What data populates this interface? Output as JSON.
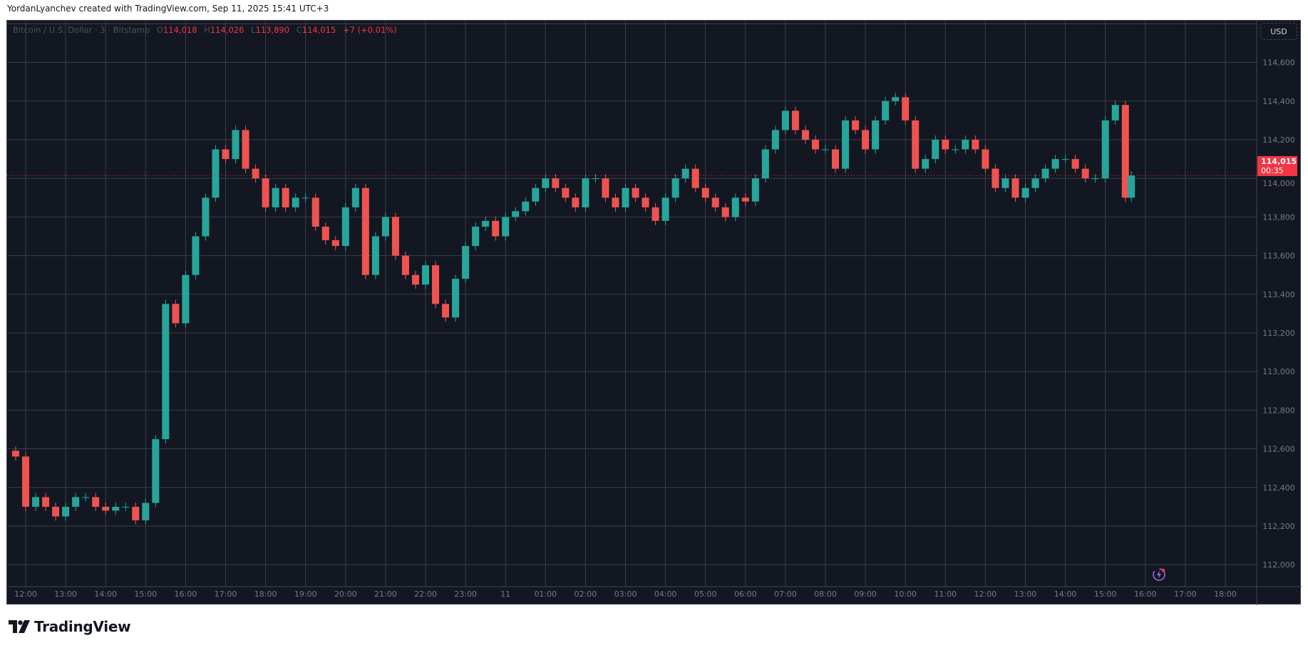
{
  "header": {
    "credit": "YordanLyanchev created with TradingView.com, Sep 11, 2025 15:41 UTC+3"
  },
  "legend": {
    "symbol": "Bitcoin / U.S. Dollar · 3 · Bitstamp",
    "o_label": "O",
    "o_value": "114,018",
    "h_label": "H",
    "h_value": "114,026",
    "l_label": "L",
    "l_value": "113,890",
    "c_label": "C",
    "c_value": "114,015",
    "change": "+7 (+0.01%)"
  },
  "price_axis": {
    "currency_button": "USD",
    "ticks": [
      "114,600",
      "114,400",
      "114,200",
      "114,000",
      "113,800",
      "113,600",
      "113,400",
      "113,200",
      "113,000",
      "112,800",
      "112,600",
      "112,400",
      "112,200",
      "112,000"
    ],
    "current_price": "114,015",
    "countdown": "00:35"
  },
  "time_axis": {
    "ticks": [
      "12:00",
      "13:00",
      "14:00",
      "15:00",
      "16:00",
      "17:00",
      "18:00",
      "19:00",
      "20:00",
      "21:00",
      "22:00",
      "23:00",
      "11",
      "01:00",
      "02:00",
      "03:00",
      "04:00",
      "05:00",
      "06:00",
      "07:00",
      "08:00",
      "09:00",
      "10:00",
      "11:00",
      "12:00",
      "13:00",
      "14:00",
      "15:00",
      "16:00",
      "17:00",
      "18:00"
    ]
  },
  "footer": {
    "logo_text": "TradingView"
  },
  "colors": {
    "up": "#26a69a",
    "down": "#ef5350",
    "background": "#131722",
    "grid": "#3b3f4b",
    "last_price": "#f23645"
  },
  "chart_data": {
    "type": "candlestick",
    "ylim": [
      112000,
      114800
    ],
    "grid": true,
    "closes": [
      [
        "11:45",
        112560
      ],
      [
        "12:00",
        112300
      ],
      [
        "12:15",
        112350
      ],
      [
        "12:30",
        112300
      ],
      [
        "12:45",
        112250
      ],
      [
        "13:00",
        112300
      ],
      [
        "13:15",
        112350
      ],
      [
        "13:30",
        112350
      ],
      [
        "13:45",
        112300
      ],
      [
        "14:00",
        112280
      ],
      [
        "14:15",
        112300
      ],
      [
        "14:30",
        112300
      ],
      [
        "14:45",
        112230
      ],
      [
        "15:00",
        112320
      ],
      [
        "15:15",
        112650
      ],
      [
        "15:30",
        113350
      ],
      [
        "15:45",
        113250
      ],
      [
        "16:00",
        113500
      ],
      [
        "16:15",
        113700
      ],
      [
        "16:30",
        113900
      ],
      [
        "16:45",
        114150
      ],
      [
        "17:00",
        114100
      ],
      [
        "17:15",
        114250
      ],
      [
        "17:30",
        114050
      ],
      [
        "17:45",
        114000
      ],
      [
        "18:00",
        113850
      ],
      [
        "18:15",
        113950
      ],
      [
        "18:30",
        113850
      ],
      [
        "18:45",
        113900
      ],
      [
        "19:00",
        113900
      ],
      [
        "19:15",
        113750
      ],
      [
        "19:30",
        113680
      ],
      [
        "19:45",
        113650
      ],
      [
        "20:00",
        113850
      ],
      [
        "20:15",
        113950
      ],
      [
        "20:30",
        113500
      ],
      [
        "20:45",
        113700
      ],
      [
        "21:00",
        113800
      ],
      [
        "21:15",
        113600
      ],
      [
        "21:30",
        113500
      ],
      [
        "21:45",
        113450
      ],
      [
        "22:00",
        113550
      ],
      [
        "22:15",
        113350
      ],
      [
        "22:30",
        113280
      ],
      [
        "22:45",
        113480
      ],
      [
        "23:00",
        113650
      ],
      [
        "23:15",
        113750
      ],
      [
        "23:30",
        113780
      ],
      [
        "23:45",
        113700
      ],
      [
        "00:00",
        113800
      ],
      [
        "00:15",
        113830
      ],
      [
        "00:30",
        113880
      ],
      [
        "00:45",
        113950
      ],
      [
        "01:00",
        114000
      ],
      [
        "01:15",
        113950
      ],
      [
        "01:30",
        113900
      ],
      [
        "01:45",
        113850
      ],
      [
        "02:00",
        114000
      ],
      [
        "02:15",
        114000
      ],
      [
        "02:30",
        113900
      ],
      [
        "02:45",
        113850
      ],
      [
        "03:00",
        113950
      ],
      [
        "03:15",
        113900
      ],
      [
        "03:30",
        113850
      ],
      [
        "03:45",
        113780
      ],
      [
        "04:00",
        113900
      ],
      [
        "04:15",
        114000
      ],
      [
        "04:30",
        114050
      ],
      [
        "04:45",
        113950
      ],
      [
        "05:00",
        113900
      ],
      [
        "05:15",
        113850
      ],
      [
        "05:30",
        113800
      ],
      [
        "05:45",
        113900
      ],
      [
        "06:00",
        113880
      ],
      [
        "06:15",
        114000
      ],
      [
        "06:30",
        114150
      ],
      [
        "06:45",
        114250
      ],
      [
        "07:00",
        114350
      ],
      [
        "07:15",
        114250
      ],
      [
        "07:30",
        114200
      ],
      [
        "07:45",
        114150
      ],
      [
        "08:00",
        114150
      ],
      [
        "08:15",
        114050
      ],
      [
        "08:30",
        114300
      ],
      [
        "08:45",
        114250
      ],
      [
        "09:00",
        114150
      ],
      [
        "09:15",
        114300
      ],
      [
        "09:30",
        114400
      ],
      [
        "09:45",
        114420
      ],
      [
        "10:00",
        114300
      ],
      [
        "10:15",
        114050
      ],
      [
        "10:30",
        114100
      ],
      [
        "10:45",
        114200
      ],
      [
        "11:00",
        114150
      ],
      [
        "11:15",
        114150
      ],
      [
        "11:30",
        114200
      ],
      [
        "11:45",
        114150
      ],
      [
        "12:00",
        114050
      ],
      [
        "12:15",
        113950
      ],
      [
        "12:30",
        114000
      ],
      [
        "12:45",
        113900
      ],
      [
        "13:00",
        113950
      ],
      [
        "13:15",
        114000
      ],
      [
        "13:30",
        114050
      ],
      [
        "13:45",
        114100
      ],
      [
        "14:00",
        114100
      ],
      [
        "14:15",
        114050
      ],
      [
        "14:30",
        114000
      ],
      [
        "14:45",
        114000
      ],
      [
        "15:00",
        114300
      ],
      [
        "15:15",
        114380
      ],
      [
        "15:30",
        113900
      ],
      [
        "15:39",
        114015
      ]
    ]
  }
}
